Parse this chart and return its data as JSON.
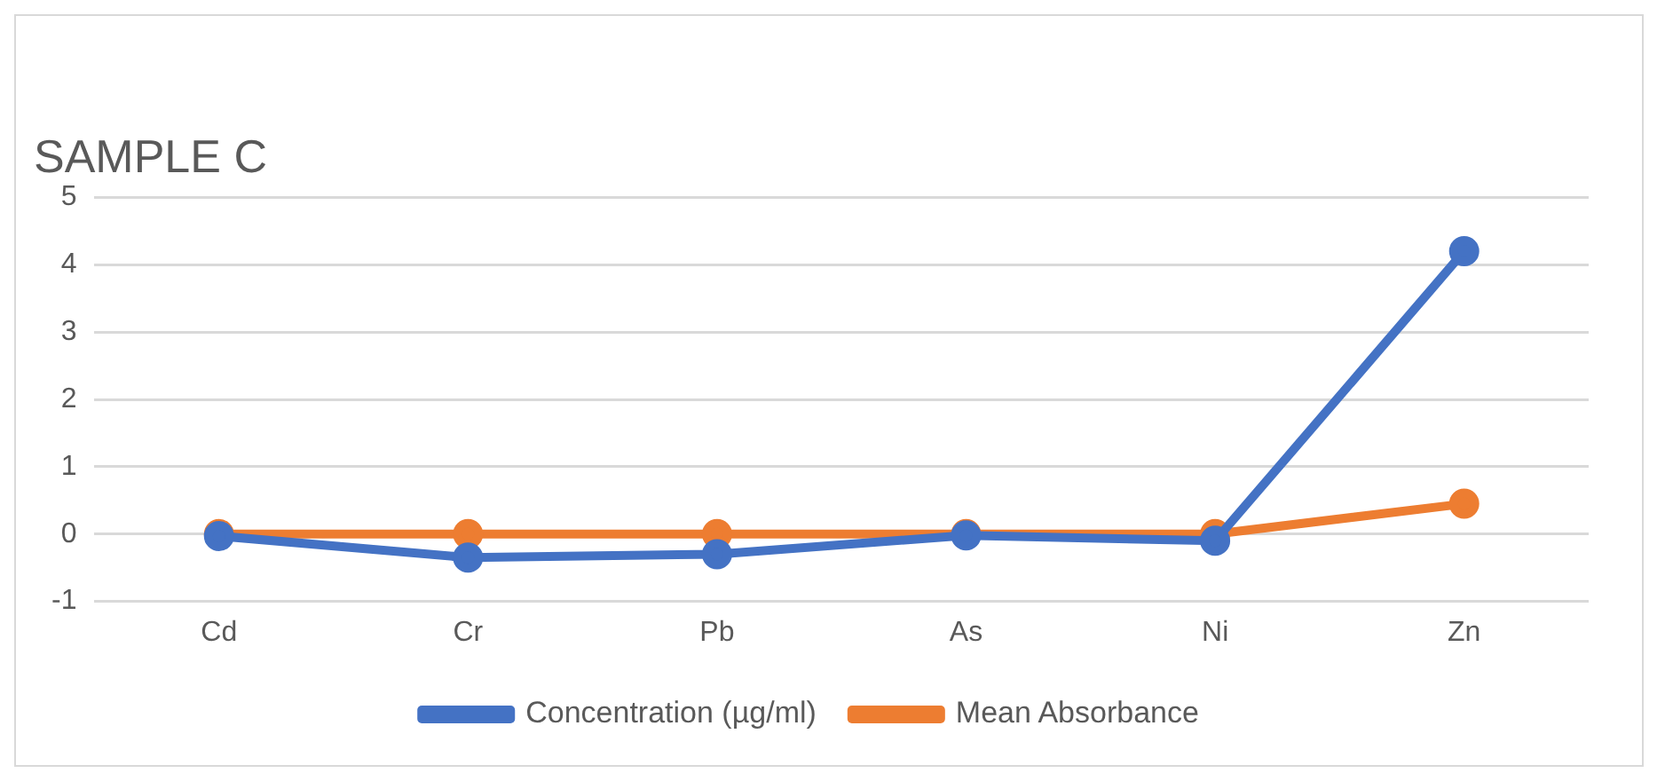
{
  "chart_data": {
    "type": "line",
    "title": "SAMPLE C",
    "categories": [
      "Cd",
      "Cr",
      "Pb",
      "As",
      "Ni",
      "Zn"
    ],
    "series": [
      {
        "name": "Concentration (µg/ml)",
        "color": "#4472c4",
        "values": [
          -0.03,
          -0.35,
          -0.3,
          -0.02,
          -0.1,
          4.2
        ]
      },
      {
        "name": "Mean Absorbance",
        "color": "#ed7d31",
        "values": [
          0,
          0,
          0,
          0,
          0,
          0.45
        ]
      }
    ],
    "ylim": [
      -1,
      5
    ],
    "yticks": [
      -1,
      0,
      1,
      2,
      3,
      4,
      5
    ],
    "grid": "y",
    "legend": "bottom",
    "marker": "circle",
    "line_style": "solid"
  }
}
